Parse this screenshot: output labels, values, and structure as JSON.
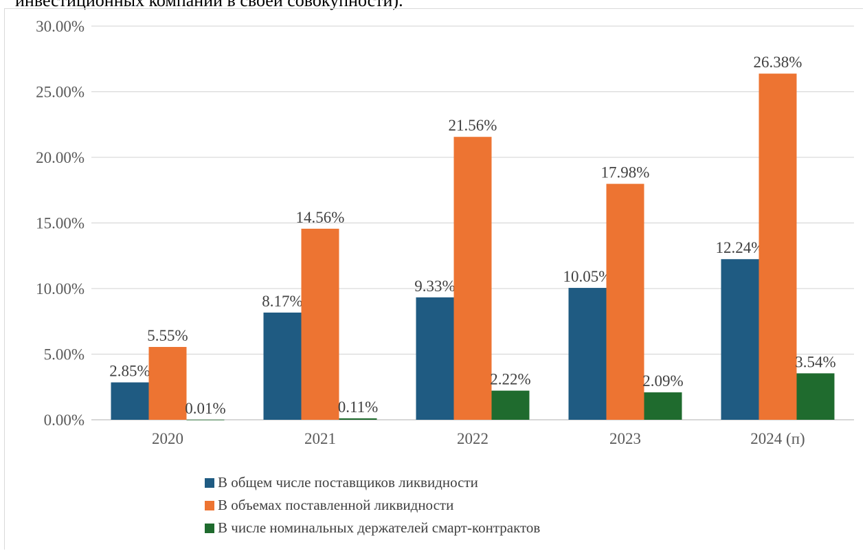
{
  "caption": "инвестиционных компаний в своей совокупности).",
  "chart_data": {
    "type": "bar",
    "categories": [
      "2020",
      "2021",
      "2022",
      "2023",
      "2024 (п)"
    ],
    "series": [
      {
        "name": "В общем числе поставщиков ликвидности",
        "color": "#1f5b82",
        "values": [
          2.85,
          8.17,
          9.33,
          10.05,
          12.24
        ],
        "labels": [
          "2.85%",
          "8.17%",
          "9.33%",
          "10.05%",
          "12.24%"
        ]
      },
      {
        "name": "В объемах поставленной ликвидности",
        "color": "#ed7432",
        "values": [
          5.55,
          14.56,
          21.56,
          17.98,
          26.38
        ],
        "labels": [
          "5.55%",
          "14.56%",
          "21.56%",
          "17.98%",
          "26.38%"
        ]
      },
      {
        "name": "В числе номинальных держателей смарт-контрактов",
        "color": "#1f6b2e",
        "values": [
          0.01,
          0.11,
          2.22,
          2.09,
          3.54
        ],
        "labels": [
          "0.01%",
          "0.11%",
          "2.22%",
          "2.09%",
          "3.54%"
        ]
      }
    ],
    "ylim": [
      0,
      30
    ],
    "yticks": [
      "0.00%",
      "5.00%",
      "10.00%",
      "15.00%",
      "20.00%",
      "25.00%",
      "30.00%"
    ],
    "grid": true,
    "legend_position": "bottom",
    "title": "",
    "xlabel": "",
    "ylabel": ""
  }
}
